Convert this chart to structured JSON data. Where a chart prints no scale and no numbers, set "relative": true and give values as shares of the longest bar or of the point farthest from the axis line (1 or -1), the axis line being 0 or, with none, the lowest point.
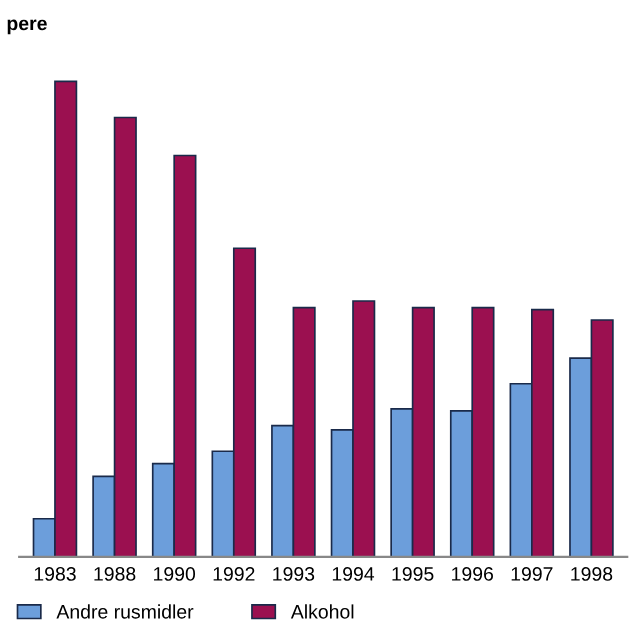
{
  "chart_data": {
    "type": "bar",
    "title": "pere",
    "relative": true,
    "legend": "bottom left",
    "categories": [
      "1983",
      "1988",
      "1990",
      "1992",
      "1993",
      "1994",
      "1995",
      "1996",
      "1997",
      "1998"
    ],
    "series": [
      {
        "name": "Andre rusmidler",
        "color": "#6c9edb",
        "values": [
          0.08,
          0.169,
          0.196,
          0.222,
          0.276,
          0.267,
          0.311,
          0.307,
          0.364,
          0.418
        ]
      },
      {
        "name": "Alkohol",
        "color": "#9b1050",
        "values": [
          1,
          0.924,
          0.844,
          0.649,
          0.524,
          0.538,
          0.524,
          0.524,
          0.52,
          0.498
        ]
      }
    ]
  }
}
